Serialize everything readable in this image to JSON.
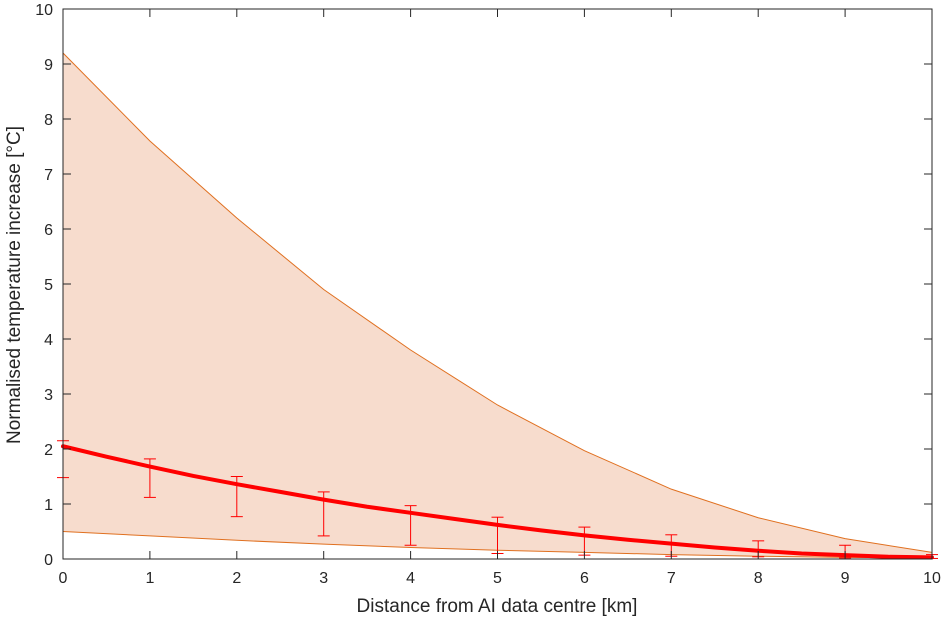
{
  "chart_data": {
    "type": "line",
    "title": "",
    "xlabel": "Distance from AI data centre [km]",
    "ylabel": "Normalised temperature increase [°C]",
    "xlim": [
      0,
      10
    ],
    "ylim": [
      0,
      10
    ],
    "xticks": [
      "0",
      "1",
      "2",
      "3",
      "4",
      "5",
      "6",
      "7",
      "8",
      "9",
      "10"
    ],
    "yticks": [
      "0",
      "1",
      "2",
      "3",
      "4",
      "5",
      "6",
      "7",
      "8",
      "9",
      "10"
    ],
    "grid": false,
    "legend": "none",
    "band": {
      "x": [
        0,
        1,
        2,
        3,
        4,
        5,
        6,
        7,
        8,
        9,
        10
      ],
      "upper": [
        9.2,
        7.6,
        6.2,
        4.9,
        3.8,
        2.8,
        1.97,
        1.27,
        0.75,
        0.37,
        0.12
      ],
      "lower": [
        0.5,
        0.42,
        0.34,
        0.27,
        0.21,
        0.16,
        0.12,
        0.08,
        0.05,
        0.03,
        0.02
      ],
      "fill_color": "#f7dccd",
      "edge_color": "#e07020"
    },
    "mean_line": {
      "x": [
        0,
        0.5,
        1,
        1.5,
        2,
        2.5,
        3,
        3.5,
        4,
        4.5,
        5,
        5.5,
        6,
        6.5,
        7,
        7.5,
        8,
        8.5,
        9,
        9.5,
        10
      ],
      "y": [
        2.05,
        1.86,
        1.68,
        1.51,
        1.36,
        1.22,
        1.08,
        0.95,
        0.84,
        0.73,
        0.62,
        0.52,
        0.43,
        0.35,
        0.28,
        0.21,
        0.15,
        0.1,
        0.07,
        0.04,
        0.03
      ],
      "color": "#ff0000"
    },
    "error_bars": {
      "x": [
        0,
        1,
        2,
        3,
        4,
        5,
        6,
        7,
        8,
        9,
        10
      ],
      "lower": [
        1.48,
        1.12,
        0.77,
        0.42,
        0.25,
        0.1,
        0.07,
        0.05,
        0.04,
        0.02,
        0.01
      ],
      "upper": [
        2.15,
        1.82,
        1.5,
        1.22,
        0.97,
        0.76,
        0.58,
        0.44,
        0.33,
        0.25,
        0.08
      ],
      "color": "#ff0000"
    }
  }
}
